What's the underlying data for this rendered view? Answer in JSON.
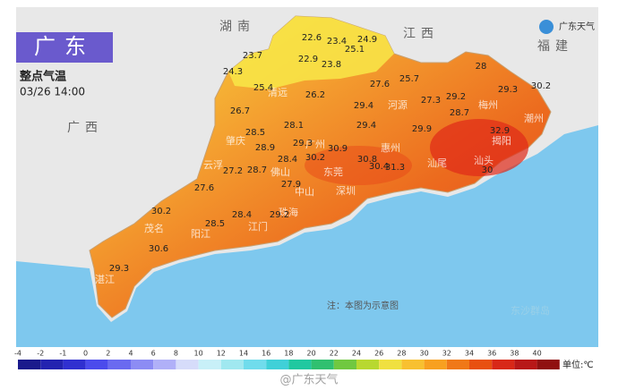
{
  "header": {
    "title": "广东",
    "subtitle": "整点气温",
    "time": "03/26 14:00",
    "logo": "广东天气"
  },
  "provinces": [
    "湖南",
    "江西",
    "福建",
    "广西"
  ],
  "cities": [
    "清远",
    "河源",
    "梅州",
    "潮州",
    "揭阳",
    "汕头",
    "汕尾",
    "惠州",
    "东莞",
    "深圳",
    "广州",
    "肇庆",
    "云浮",
    "佛山",
    "中山",
    "珠海",
    "江门",
    "阳江",
    "茂名",
    "湛江"
  ],
  "temperatures": [
    22.6,
    23.4,
    24.9,
    25.1,
    23.7,
    22.9,
    23.8,
    24.3,
    25.4,
    26.2,
    27.6,
    25.7,
    28,
    29.3,
    30.2,
    29.2,
    27.3,
    28.7,
    26.7,
    29.4,
    28.1,
    29.4,
    29.9,
    32.9,
    28.5,
    28.9,
    29.3,
    30.9,
    30.8,
    30.2,
    30.4,
    31.3,
    30,
    27.2,
    28.7,
    28.4,
    27.9,
    27.6,
    30.2,
    28.4,
    29.2,
    28.5,
    30.6,
    29.3
  ],
  "note": "注：本图为示意图",
  "islands": "东沙群岛",
  "legend": {
    "ticks": [
      -4,
      -2,
      -1,
      0,
      2,
      4,
      6,
      8,
      10,
      12,
      14,
      16,
      18,
      20,
      22,
      24,
      26,
      28,
      30,
      32,
      34,
      36,
      38,
      40
    ],
    "colors": [
      "#1a1a8c",
      "#2323b0",
      "#3030d0",
      "#4b4bec",
      "#6a6af0",
      "#8c8cf4",
      "#b0b0f8",
      "#d6dcfa",
      "#c8f0f8",
      "#a0e8f0",
      "#70dcec",
      "#40d0d8",
      "#20c8a0",
      "#30c070",
      "#70c840",
      "#b8d830",
      "#f0e040",
      "#f8c030",
      "#f8a020",
      "#f07818",
      "#e85010",
      "#d82818",
      "#b81818",
      "#901010"
    ],
    "unit": "单位:℃"
  },
  "watermark": "@广东天气"
}
